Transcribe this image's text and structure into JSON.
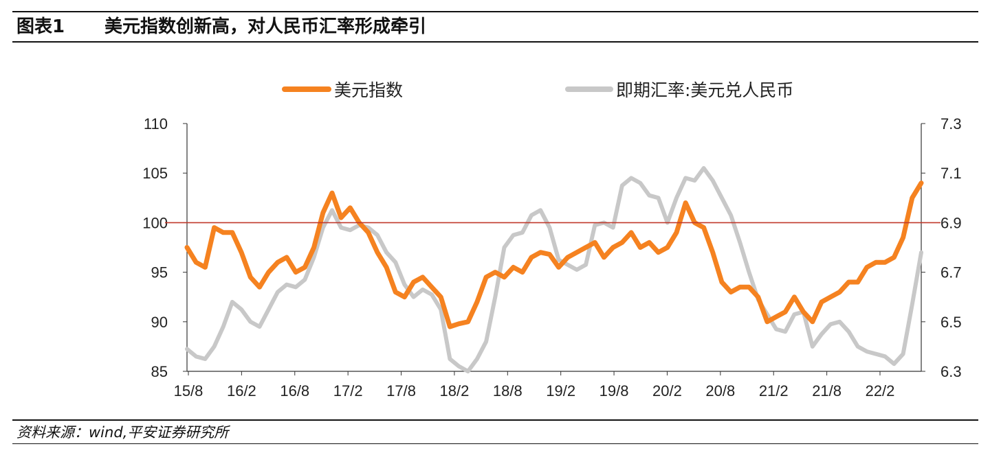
{
  "figure": {
    "label": "图表1",
    "title": "美元指数创新高，对人民币汇率形成牵引",
    "source": "资料来源：wind,平安证券研究所"
  },
  "chart_data": {
    "type": "line",
    "title": "美元指数创新高，对人民币汇率形成牵引",
    "xlabel": "",
    "ylabel": "",
    "y2label": "",
    "x_ticks": [
      "15/8",
      "16/2",
      "16/8",
      "17/2",
      "17/8",
      "18/2",
      "18/8",
      "19/2",
      "19/8",
      "20/2",
      "20/8",
      "21/2",
      "21/8",
      "22/2"
    ],
    "ylim": [
      85,
      110
    ],
    "y_ticks": [
      85,
      90,
      95,
      100,
      105,
      110
    ],
    "y2lim": [
      6.3,
      7.3
    ],
    "y2_ticks": [
      "6.3",
      "6.5",
      "6.7",
      "6.9",
      "7.1",
      "7.3"
    ],
    "x_range": [
      "2015-08",
      "2022-05"
    ],
    "reference_line": {
      "axis": "left",
      "value": 100,
      "color": "#c0392b"
    },
    "legend_position": "top",
    "series": [
      {
        "name": "美元指数",
        "axis": "left",
        "color": "#f58220",
        "x": [
          "2015-08",
          "2015-09",
          "2015-10",
          "2015-11",
          "2015-12",
          "2016-01",
          "2016-02",
          "2016-03",
          "2016-04",
          "2016-05",
          "2016-06",
          "2016-07",
          "2016-08",
          "2016-09",
          "2016-10",
          "2016-11",
          "2016-12",
          "2017-01",
          "2017-02",
          "2017-03",
          "2017-04",
          "2017-05",
          "2017-06",
          "2017-07",
          "2017-08",
          "2017-09",
          "2017-10",
          "2017-11",
          "2017-12",
          "2018-01",
          "2018-02",
          "2018-03",
          "2018-04",
          "2018-05",
          "2018-06",
          "2018-07",
          "2018-08",
          "2018-09",
          "2018-10",
          "2018-11",
          "2018-12",
          "2019-01",
          "2019-02",
          "2019-03",
          "2019-04",
          "2019-05",
          "2019-06",
          "2019-07",
          "2019-08",
          "2019-09",
          "2019-10",
          "2019-11",
          "2019-12",
          "2020-01",
          "2020-02",
          "2020-03",
          "2020-04",
          "2020-05",
          "2020-06",
          "2020-07",
          "2020-08",
          "2020-09",
          "2020-10",
          "2020-11",
          "2020-12",
          "2021-01",
          "2021-02",
          "2021-03",
          "2021-04",
          "2021-05",
          "2021-06",
          "2021-07",
          "2021-08",
          "2021-09",
          "2021-10",
          "2021-11",
          "2021-12",
          "2022-01",
          "2022-02",
          "2022-03",
          "2022-04",
          "2022-05"
        ],
        "values": [
          97.5,
          96.0,
          95.5,
          99.5,
          99.0,
          99.0,
          97.0,
          94.5,
          93.5,
          95.0,
          96.0,
          96.5,
          95.0,
          95.5,
          97.5,
          101.0,
          103.0,
          100.5,
          101.5,
          100.0,
          99.0,
          97.0,
          95.5,
          93.0,
          92.5,
          94.0,
          94.5,
          93.5,
          92.5,
          89.5,
          89.8,
          90.0,
          92.0,
          94.5,
          95.0,
          94.5,
          95.5,
          95.0,
          96.5,
          97.0,
          96.8,
          95.5,
          96.5,
          97.0,
          97.5,
          98.0,
          96.5,
          97.5,
          98.0,
          99.0,
          97.5,
          98.0,
          97.0,
          97.5,
          99.0,
          102.0,
          100.0,
          99.5,
          97.0,
          94.0,
          93.0,
          93.5,
          93.5,
          92.5,
          90.0,
          90.5,
          91.0,
          92.5,
          91.0,
          90.0,
          92.0,
          92.5,
          93.0,
          94.0,
          94.0,
          95.5,
          96.0,
          96.0,
          96.5,
          98.5,
          102.5,
          104.0
        ]
      },
      {
        "name": "即期汇率:美元兑人民币",
        "axis": "right",
        "color": "#c8c8c8",
        "x": [
          "2015-08",
          "2015-09",
          "2015-10",
          "2015-11",
          "2015-12",
          "2016-01",
          "2016-02",
          "2016-03",
          "2016-04",
          "2016-05",
          "2016-06",
          "2016-07",
          "2016-08",
          "2016-09",
          "2016-10",
          "2016-11",
          "2016-12",
          "2017-01",
          "2017-02",
          "2017-03",
          "2017-04",
          "2017-05",
          "2017-06",
          "2017-07",
          "2017-08",
          "2017-09",
          "2017-10",
          "2017-11",
          "2017-12",
          "2018-01",
          "2018-02",
          "2018-03",
          "2018-04",
          "2018-05",
          "2018-06",
          "2018-07",
          "2018-08",
          "2018-09",
          "2018-10",
          "2018-11",
          "2018-12",
          "2019-01",
          "2019-02",
          "2019-03",
          "2019-04",
          "2019-05",
          "2019-06",
          "2019-07",
          "2019-08",
          "2019-09",
          "2019-10",
          "2019-11",
          "2019-12",
          "2020-01",
          "2020-02",
          "2020-03",
          "2020-04",
          "2020-05",
          "2020-06",
          "2020-07",
          "2020-08",
          "2020-09",
          "2020-10",
          "2020-11",
          "2020-12",
          "2021-01",
          "2021-02",
          "2021-03",
          "2021-04",
          "2021-05",
          "2021-06",
          "2021-07",
          "2021-08",
          "2021-09",
          "2021-10",
          "2021-11",
          "2021-12",
          "2022-01",
          "2022-02",
          "2022-03",
          "2022-04",
          "2022-05"
        ],
        "values": [
          6.39,
          6.36,
          6.35,
          6.4,
          6.48,
          6.58,
          6.55,
          6.5,
          6.48,
          6.55,
          6.62,
          6.65,
          6.64,
          6.67,
          6.76,
          6.88,
          6.95,
          6.88,
          6.87,
          6.89,
          6.88,
          6.85,
          6.78,
          6.74,
          6.65,
          6.6,
          6.63,
          6.61,
          6.55,
          6.35,
          6.32,
          6.3,
          6.35,
          6.42,
          6.6,
          6.8,
          6.85,
          6.86,
          6.93,
          6.95,
          6.88,
          6.75,
          6.73,
          6.71,
          6.73,
          6.89,
          6.9,
          6.88,
          7.05,
          7.08,
          7.06,
          7.01,
          7.0,
          6.9,
          7.0,
          7.08,
          7.07,
          7.12,
          7.07,
          7.0,
          6.93,
          6.82,
          6.7,
          6.59,
          6.53,
          6.47,
          6.46,
          6.53,
          6.54,
          6.4,
          6.45,
          6.49,
          6.5,
          6.46,
          6.4,
          6.38,
          6.37,
          6.36,
          6.33,
          6.37,
          6.57,
          6.78
        ]
      }
    ]
  }
}
